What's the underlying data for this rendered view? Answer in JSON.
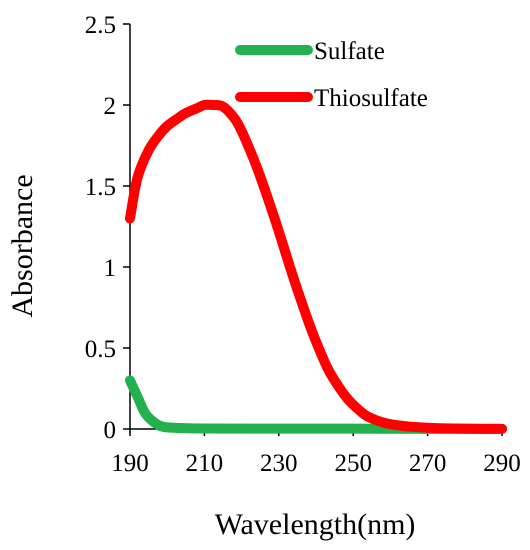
{
  "chart_data": {
    "type": "line",
    "title": "",
    "xlabel": "Wavelength(nm)",
    "ylabel": "Absorbance",
    "xlim": [
      190,
      290
    ],
    "ylim": [
      0,
      2.5
    ],
    "xticks": [
      190,
      210,
      230,
      250,
      270,
      290
    ],
    "yticks": [
      0,
      0.5,
      1,
      1.5,
      2,
      2.5
    ],
    "ytick_labels": [
      "0",
      "0.5",
      "1",
      "1.5",
      "2",
      "2.5"
    ],
    "grid": false,
    "legend_position": "top-right",
    "series": [
      {
        "name": "Sulfate",
        "color": "#22b14c",
        "x": [
          190,
          192,
          194,
          196,
          198,
          200,
          205,
          210,
          230,
          250,
          270,
          290
        ],
        "y": [
          0.3,
          0.2,
          0.1,
          0.05,
          0.02,
          0.01,
          0.005,
          0.003,
          0.002,
          0.002,
          0.001,
          0.001
        ]
      },
      {
        "name": "Thiosulfate",
        "color": "#ff0000",
        "x": [
          190,
          192,
          195,
          198,
          200,
          203,
          205,
          208,
          210,
          212,
          215,
          218,
          220,
          223,
          225,
          228,
          230,
          233,
          235,
          238,
          240,
          243,
          245,
          248,
          250,
          253,
          255,
          258,
          260,
          263,
          265,
          270,
          275,
          280,
          285,
          290
        ],
        "y": [
          1.3,
          1.55,
          1.72,
          1.82,
          1.87,
          1.92,
          1.95,
          1.98,
          2.0,
          2.0,
          1.99,
          1.92,
          1.84,
          1.68,
          1.56,
          1.36,
          1.22,
          1.0,
          0.86,
          0.66,
          0.54,
          0.38,
          0.3,
          0.2,
          0.15,
          0.09,
          0.065,
          0.04,
          0.03,
          0.02,
          0.015,
          0.008,
          0.004,
          0.002,
          0.001,
          0.001
        ]
      }
    ]
  }
}
